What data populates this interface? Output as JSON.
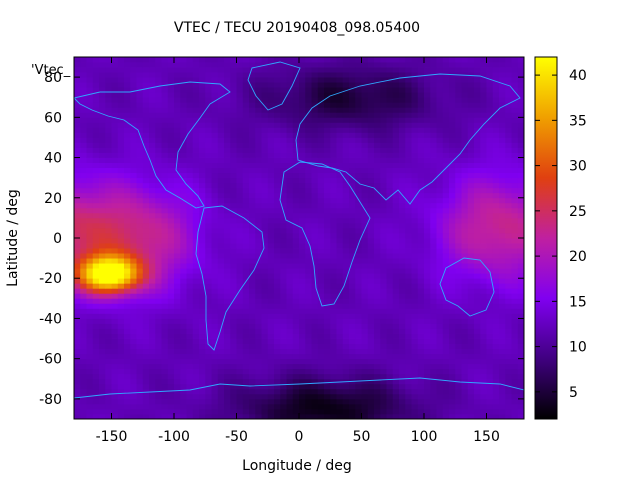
{
  "chart_data": {
    "type": "heatmap",
    "title": "VTEC / TECU 20190408_098.05400",
    "xlabel": "Longitude / deg",
    "ylabel": "Latitude / deg",
    "key_label": "'Vtec_",
    "xlim": [
      -180,
      180
    ],
    "ylim": [
      -90,
      90
    ],
    "x_ticks": [
      -150,
      -100,
      -50,
      0,
      50,
      100,
      150
    ],
    "y_ticks": [
      -80,
      -60,
      -40,
      -20,
      0,
      20,
      40,
      60,
      80
    ],
    "colorbar": {
      "range": [
        2,
        42
      ],
      "ticks": [
        5,
        10,
        15,
        20,
        25,
        30,
        35,
        40
      ],
      "palette": [
        "#000000",
        "#400080",
        "#8000f0",
        "#c020a0",
        "#e04010",
        "#f0a000",
        "#ffff00"
      ]
    },
    "field_features": [
      {
        "feature": "peak",
        "lon": -152,
        "lat": -18,
        "vtec": 42
      },
      {
        "feature": "enhancement",
        "lon": -130,
        "lat": 0,
        "vtec": 27
      },
      {
        "feature": "enhancement",
        "lon": 160,
        "lat": 5,
        "vtec": 27
      },
      {
        "feature": "background",
        "vtec": 12
      },
      {
        "feature": "minimum",
        "lon": 40,
        "lat": 70,
        "vtec": 5
      },
      {
        "feature": "minimum",
        "lon": 20,
        "lat": -85,
        "vtec": 3
      }
    ],
    "grid": false,
    "legend_position": "top-left"
  }
}
